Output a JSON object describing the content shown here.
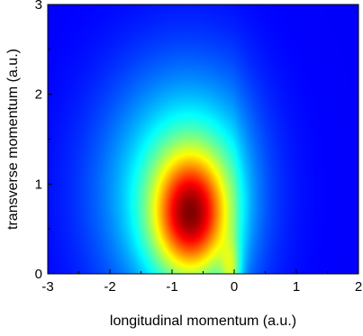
{
  "chart_data": {
    "type": "heatmap",
    "title": "",
    "xlabel": "longitudinal momentum (a.u.)",
    "ylabel": "transverse momentum (a.u.)",
    "xlim": [
      -3,
      2
    ],
    "ylim": [
      0,
      3
    ],
    "x_ticks": [
      -3,
      -2,
      -1,
      0,
      1,
      2
    ],
    "y_ticks": [
      0,
      1,
      2,
      3
    ],
    "x_tick_labels": [
      "-3",
      "-2",
      "-1",
      "0",
      "1",
      "2"
    ],
    "y_tick_labels": [
      "0",
      "1",
      "2",
      "3"
    ],
    "colormap": "jet",
    "colors": {
      "low": "#0000ff",
      "mid": "#00ff00",
      "high": "#ff3000"
    },
    "peak": {
      "x": -0.7,
      "y": 0.65
    },
    "legend": "none",
    "grid": false
  }
}
